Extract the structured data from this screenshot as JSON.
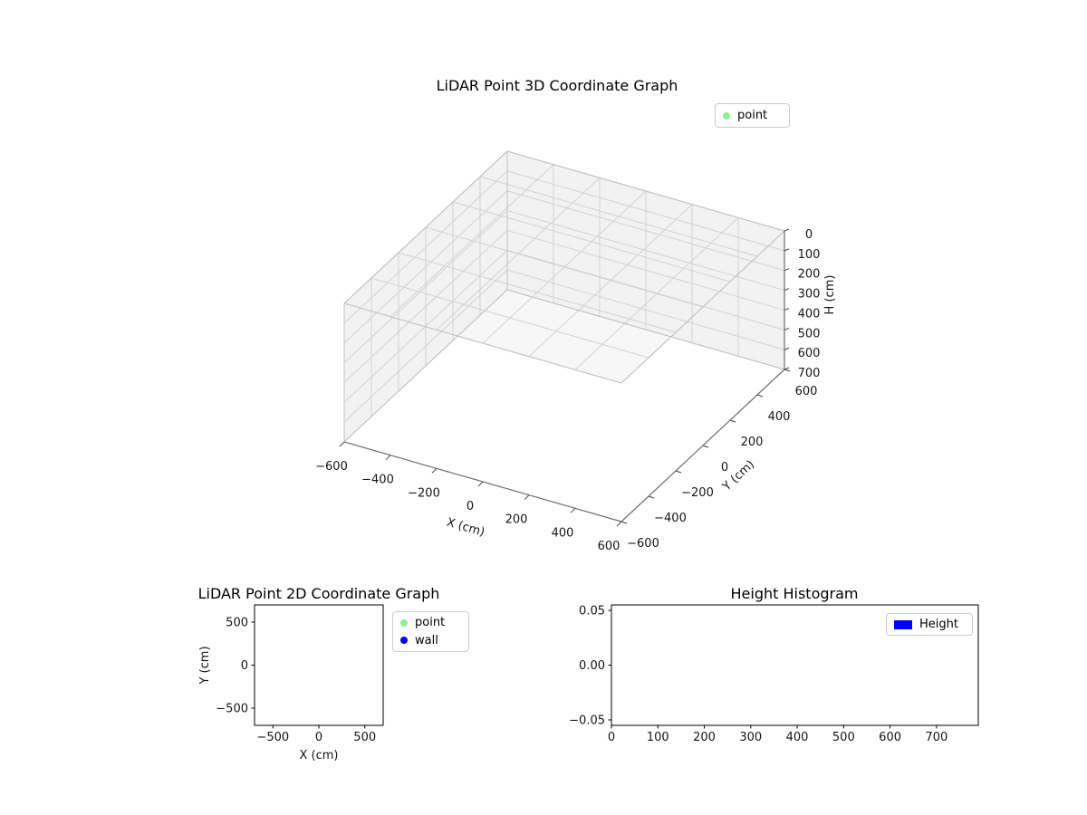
{
  "figure": {
    "background": "#ffffff"
  },
  "chart_data": [
    {
      "id": "lidar-3d",
      "type": "scatter3d",
      "title": "LiDAR Point 3D Coordinate Graph",
      "xlabel": "X (cm)",
      "ylabel": "Y (cm)",
      "zlabel": "H (cm)",
      "xlim": [
        -600,
        600
      ],
      "ylim": [
        -600,
        600
      ],
      "zlim": [
        0,
        700
      ],
      "zaxis_inverted": true,
      "xticks": [
        -600,
        -400,
        -200,
        0,
        200,
        400,
        600
      ],
      "xtick_labels": [
        "−600",
        "−400",
        "−200",
        "0",
        "200",
        "400",
        "600"
      ],
      "yticks": [
        -600,
        -400,
        -200,
        0,
        200,
        400,
        600
      ],
      "ytick_labels": [
        "−600",
        "−400",
        "−200",
        "0",
        "200",
        "400",
        "600"
      ],
      "zticks": [
        0,
        100,
        200,
        300,
        400,
        500,
        600,
        700
      ],
      "ztick_labels": [
        "0",
        "100",
        "200",
        "300",
        "400",
        "500",
        "600",
        "700"
      ],
      "grid": true,
      "pane_color": "#f2f2f2",
      "legend": {
        "position": "upper-right",
        "entries": [
          {
            "label": "point",
            "marker": "circle",
            "color": "#90ee90"
          }
        ]
      },
      "series": [
        {
          "name": "point",
          "color": "#90ee90",
          "points": []
        }
      ]
    },
    {
      "id": "lidar-2d",
      "type": "scatter",
      "title": "LiDAR Point 2D Coordinate Graph",
      "xlabel": "X (cm)",
      "ylabel": "Y (cm)",
      "xlim": [
        -700,
        700
      ],
      "ylim": [
        -700,
        700
      ],
      "xticks": [
        -500,
        0,
        500
      ],
      "xtick_labels": [
        "−500",
        "0",
        "500"
      ],
      "yticks": [
        -500,
        0,
        500
      ],
      "ytick_labels": [
        "−500",
        "0",
        "500"
      ],
      "grid": false,
      "legend": {
        "position": "outside-right",
        "entries": [
          {
            "label": "point",
            "marker": "circle",
            "color": "#90ee90"
          },
          {
            "label": "wall",
            "marker": "circle",
            "color": "#0000ff"
          }
        ]
      },
      "series": [
        {
          "name": "point",
          "color": "#90ee90",
          "points": []
        },
        {
          "name": "wall",
          "color": "#0000ff",
          "points": []
        }
      ]
    },
    {
      "id": "height-histogram",
      "type": "bar",
      "title": "Height Histogram",
      "xlabel": "",
      "ylabel": "",
      "xlim": [
        0,
        790
      ],
      "ylim": [
        -0.055,
        0.055
      ],
      "xticks": [
        0,
        100,
        200,
        300,
        400,
        500,
        600,
        700
      ],
      "xtick_labels": [
        "0",
        "100",
        "200",
        "300",
        "400",
        "500",
        "600",
        "700"
      ],
      "yticks": [
        -0.05,
        0,
        0.05
      ],
      "ytick_labels": [
        "−0.05",
        "0.00",
        "0.05"
      ],
      "grid": false,
      "legend": {
        "position": "upper-right",
        "entries": [
          {
            "label": "Height",
            "marker": "rect",
            "color": "#0000ff"
          }
        ]
      },
      "categories": [],
      "values": []
    }
  ]
}
